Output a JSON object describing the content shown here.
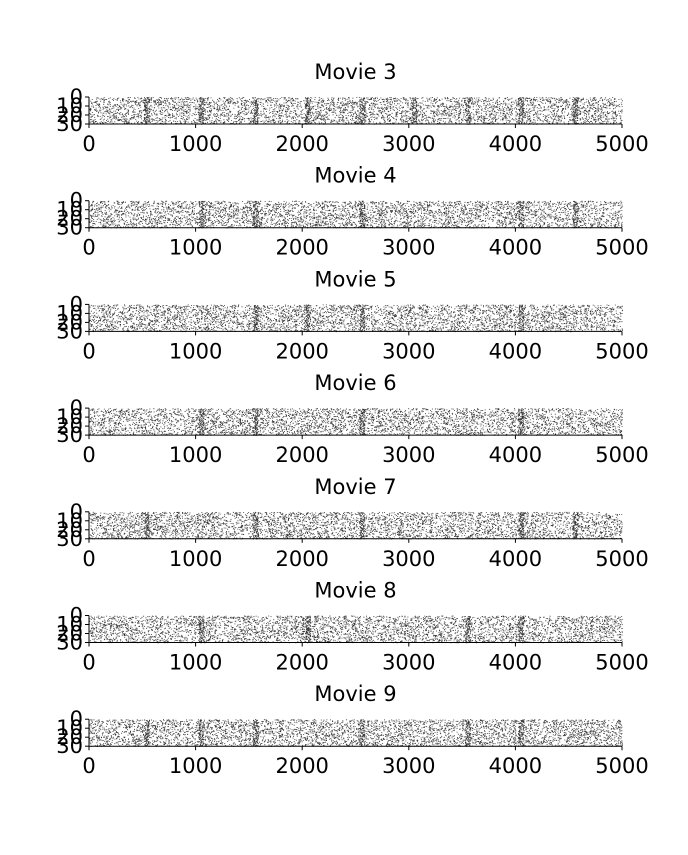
{
  "figure": {
    "background": "#ffffff",
    "ink_color": "#333333"
  },
  "chart_data": [
    {
      "type": "scatter",
      "style": "raster (spike dots)",
      "title": "Movie 3",
      "xlim": [
        0,
        5000
      ],
      "ylim": [
        30,
        0
      ],
      "xticks": [
        "0",
        "1000",
        "2000",
        "3000",
        "4000",
        "5000"
      ],
      "yticks": [
        "0",
        "10",
        "20",
        "30"
      ],
      "n_rows": 30,
      "grid": false,
      "dense_columns_x": [
        540,
        1050,
        1560,
        2050,
        2560,
        3050,
        3550,
        4050,
        4560
      ]
    },
    {
      "type": "scatter",
      "style": "raster (spike dots)",
      "title": "Movie 4",
      "xlim": [
        0,
        5000
      ],
      "ylim": [
        30,
        0
      ],
      "xticks": [
        "0",
        "1000",
        "2000",
        "3000",
        "4000",
        "5000"
      ],
      "yticks": [
        "0",
        "10",
        "20",
        "30"
      ],
      "n_rows": 30,
      "grid": false,
      "dense_columns_x": [
        1050,
        1560,
        2560,
        4050,
        4560
      ]
    },
    {
      "type": "scatter",
      "style": "raster (spike dots)",
      "title": "Movie 5",
      "xlim": [
        0,
        5000
      ],
      "ylim": [
        30,
        0
      ],
      "xticks": [
        "0",
        "1000",
        "2000",
        "3000",
        "4000",
        "5000"
      ],
      "yticks": [
        "0",
        "10",
        "20",
        "30"
      ],
      "n_rows": 30,
      "grid": false,
      "dense_columns_x": [
        1560,
        2050,
        2560,
        4050
      ]
    },
    {
      "type": "scatter",
      "style": "raster (spike dots)",
      "title": "Movie 6",
      "xlim": [
        0,
        5000
      ],
      "ylim": [
        30,
        0
      ],
      "xticks": [
        "0",
        "1000",
        "2000",
        "3000",
        "4000",
        "5000"
      ],
      "yticks": [
        "0",
        "10",
        "20",
        "30"
      ],
      "n_rows": 30,
      "grid": false,
      "dense_columns_x": [
        1050,
        1560,
        2560,
        4050
      ]
    },
    {
      "type": "scatter",
      "style": "raster (spike dots)",
      "title": "Movie 7",
      "xlim": [
        0,
        5000
      ],
      "ylim": [
        30,
        0
      ],
      "xticks": [
        "0",
        "1000",
        "2000",
        "3000",
        "4000",
        "5000"
      ],
      "yticks": [
        "0",
        "10",
        "20",
        "30"
      ],
      "n_rows": 30,
      "grid": false,
      "dense_columns_x": [
        540,
        1560,
        2560,
        4050,
        4560
      ]
    },
    {
      "type": "scatter",
      "style": "raster (spike dots)",
      "title": "Movie 8",
      "xlim": [
        0,
        5000
      ],
      "ylim": [
        30,
        0
      ],
      "xticks": [
        "0",
        "1000",
        "2000",
        "3000",
        "4000",
        "5000"
      ],
      "yticks": [
        "0",
        "10",
        "20",
        "30"
      ],
      "n_rows": 30,
      "grid": false,
      "dense_columns_x": [
        1050,
        2050,
        3550,
        4050
      ]
    },
    {
      "type": "scatter",
      "style": "raster (spike dots)",
      "title": "Movie 9",
      "xlim": [
        0,
        5000
      ],
      "ylim": [
        30,
        0
      ],
      "xticks": [
        "0",
        "1000",
        "2000",
        "3000",
        "4000",
        "5000"
      ],
      "yticks": [
        "0",
        "10",
        "20",
        "30"
      ],
      "n_rows": 30,
      "grid": false,
      "dense_columns_x": [
        540,
        1050,
        1560,
        2560,
        3550,
        4050
      ]
    }
  ]
}
